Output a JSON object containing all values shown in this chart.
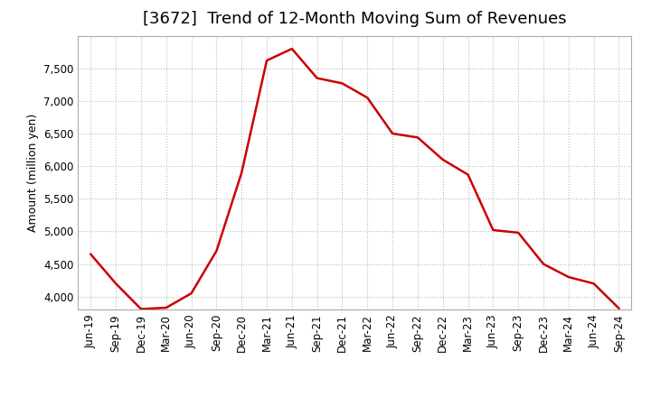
{
  "title": "[3672]  Trend of 12-Month Moving Sum of Revenues",
  "ylabel": "Amount (million yen)",
  "line_color": "#cc0000",
  "line_width": 1.8,
  "background_color": "#ffffff",
  "grid_color": "#bbbbbb",
  "x_labels": [
    "Jun-19",
    "Sep-19",
    "Dec-19",
    "Mar-20",
    "Jun-20",
    "Sep-20",
    "Dec-20",
    "Mar-21",
    "Jun-21",
    "Sep-21",
    "Dec-21",
    "Mar-22",
    "Jun-22",
    "Sep-22",
    "Dec-22",
    "Mar-23",
    "Jun-23",
    "Sep-23",
    "Dec-23",
    "Mar-24",
    "Jun-24",
    "Sep-24"
  ],
  "y_values": [
    4650,
    4200,
    3810,
    3830,
    4050,
    4700,
    5900,
    7620,
    7800,
    7350,
    7270,
    7050,
    6500,
    6440,
    6100,
    5870,
    5020,
    4980,
    4500,
    4300,
    4200,
    3820
  ],
  "ylim_min": 3800,
  "ylim_max": 8000,
  "yticks": [
    4000,
    4500,
    5000,
    5500,
    6000,
    6500,
    7000,
    7500
  ],
  "title_fontsize": 13,
  "axis_fontsize": 9,
  "tick_fontsize": 8.5
}
